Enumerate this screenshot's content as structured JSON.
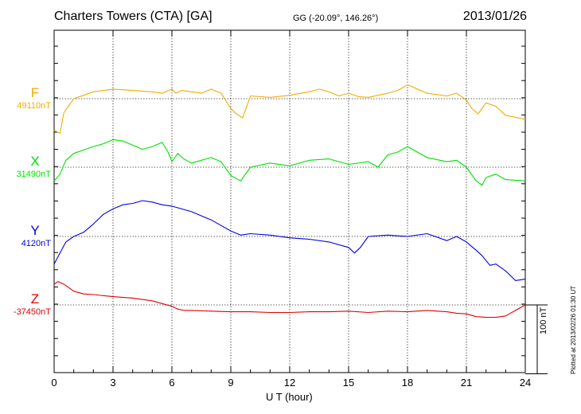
{
  "chart_data": {
    "type": "line",
    "title": "Charters Towers (CTA)  [GA]",
    "subtitle": "GG (-20.09°, 146.26°)",
    "date": "2013/01/26",
    "xlabel": "U T (hour)",
    "xlim": [
      0,
      24
    ],
    "xticks": [
      0,
      3,
      6,
      9,
      12,
      15,
      18,
      21,
      24
    ],
    "tick_labels": [
      "0",
      "3",
      "6",
      "9",
      "12",
      "15",
      "18",
      "21",
      "24"
    ],
    "grid": true,
    "unit": "nT",
    "scale_bar_label": "100 nT",
    "scale_bar_nT": 100,
    "series": [
      {
        "name": "F",
        "baseline_label": "49110nT",
        "baseline": 49110,
        "color": "#f0ac00",
        "x": [
          0,
          0.3,
          0.5,
          1,
          1.5,
          2,
          3,
          4,
          5,
          5.5,
          6,
          6.2,
          6.5,
          7,
          7.5,
          8,
          8.5,
          9,
          9.2,
          9.6,
          10,
          11,
          12,
          13,
          13.5,
          14,
          14.5,
          15,
          15.5,
          16,
          17,
          17.5,
          18,
          18.2,
          18.5,
          19,
          20,
          20.5,
          21,
          21.3,
          21.6,
          22,
          22.5,
          23,
          24
        ],
        "values": [
          49064,
          49060,
          49090,
          49110,
          49115,
          49120,
          49124,
          49122,
          49120,
          49118,
          49124,
          49118,
          49122,
          49120,
          49118,
          49124,
          49118,
          49096,
          49090,
          49082,
          49114,
          49112,
          49115,
          49120,
          49124,
          49120,
          49114,
          49118,
          49113,
          49112,
          49118,
          49122,
          49130,
          49128,
          49124,
          49118,
          49114,
          49118,
          49108,
          49095,
          49088,
          49104,
          49099,
          49086,
          49080
        ]
      },
      {
        "name": "X",
        "baseline_label": "31490nT",
        "baseline": 31490,
        "color": "#00e000",
        "x": [
          0,
          0.3,
          0.6,
          1,
          1.5,
          2,
          2.5,
          3,
          3.5,
          4,
          4.5,
          5,
          5.5,
          5.8,
          6,
          6.3,
          6.6,
          7,
          7.5,
          8,
          8.5,
          9,
          9.5,
          10,
          11,
          12,
          13,
          14,
          15,
          16,
          16.5,
          17,
          17.5,
          18,
          18.5,
          19,
          20,
          20.5,
          21,
          21.5,
          21.8,
          22,
          22.5,
          23,
          24
        ],
        "values": [
          31470,
          31480,
          31500,
          31510,
          31515,
          31520,
          31524,
          31530,
          31528,
          31522,
          31516,
          31520,
          31526,
          31512,
          31498,
          31510,
          31502,
          31496,
          31500,
          31504,
          31498,
          31478,
          31470,
          31490,
          31496,
          31492,
          31500,
          31502,
          31494,
          31498,
          31490,
          31508,
          31512,
          31520,
          31512,
          31504,
          31498,
          31500,
          31490,
          31470,
          31464,
          31475,
          31480,
          31472,
          31470
        ]
      },
      {
        "name": "Y",
        "baseline_label": "4120nT",
        "baseline": 4120,
        "color": "#0000e0",
        "x": [
          0,
          0.3,
          0.6,
          1,
          1.5,
          2,
          2.5,
          3,
          3.5,
          4,
          4.5,
          5,
          5.5,
          6,
          6.5,
          7,
          7.5,
          8,
          8.5,
          9,
          9.5,
          10,
          11,
          12,
          13,
          14,
          15,
          15.3,
          15.6,
          16,
          17,
          18,
          19,
          20,
          20.5,
          21,
          21.5,
          21.8,
          22.2,
          22.5,
          23,
          23.5,
          24
        ],
        "values": [
          4080,
          4096,
          4112,
          4120,
          4126,
          4138,
          4152,
          4160,
          4166,
          4168,
          4172,
          4170,
          4166,
          4164,
          4160,
          4156,
          4150,
          4144,
          4136,
          4128,
          4122,
          4124,
          4122,
          4118,
          4116,
          4112,
          4104,
          4096,
          4104,
          4120,
          4122,
          4120,
          4124,
          4114,
          4120,
          4112,
          4100,
          4092,
          4078,
          4080,
          4070,
          4056,
          4058
        ]
      },
      {
        "name": "Z",
        "baseline_label": "-37450nT",
        "baseline": -37450,
        "color": "#e00000",
        "x": [
          0,
          0.2,
          0.5,
          1,
          1.5,
          2,
          3,
          4,
          5,
          5.5,
          6,
          6.3,
          6.6,
          7,
          8,
          9,
          10,
          11,
          12,
          13,
          14,
          15,
          16,
          17,
          18,
          19,
          20,
          20.5,
          21,
          21.5,
          22,
          22.5,
          23,
          23.5,
          24
        ],
        "values": [
          -37420,
          -37416,
          -37420,
          -37430,
          -37434,
          -37435,
          -37438,
          -37440,
          -37444,
          -37448,
          -37452,
          -37456,
          -37458,
          -37458,
          -37459,
          -37460,
          -37460,
          -37461,
          -37461,
          -37460,
          -37460,
          -37459,
          -37461,
          -37459,
          -37460,
          -37458,
          -37460,
          -37462,
          -37463,
          -37467,
          -37468,
          -37468,
          -37466,
          -37458,
          -37450
        ]
      }
    ]
  },
  "footer": {
    "plotted": "Plotted at 2013/02/26 01:30 UT"
  }
}
